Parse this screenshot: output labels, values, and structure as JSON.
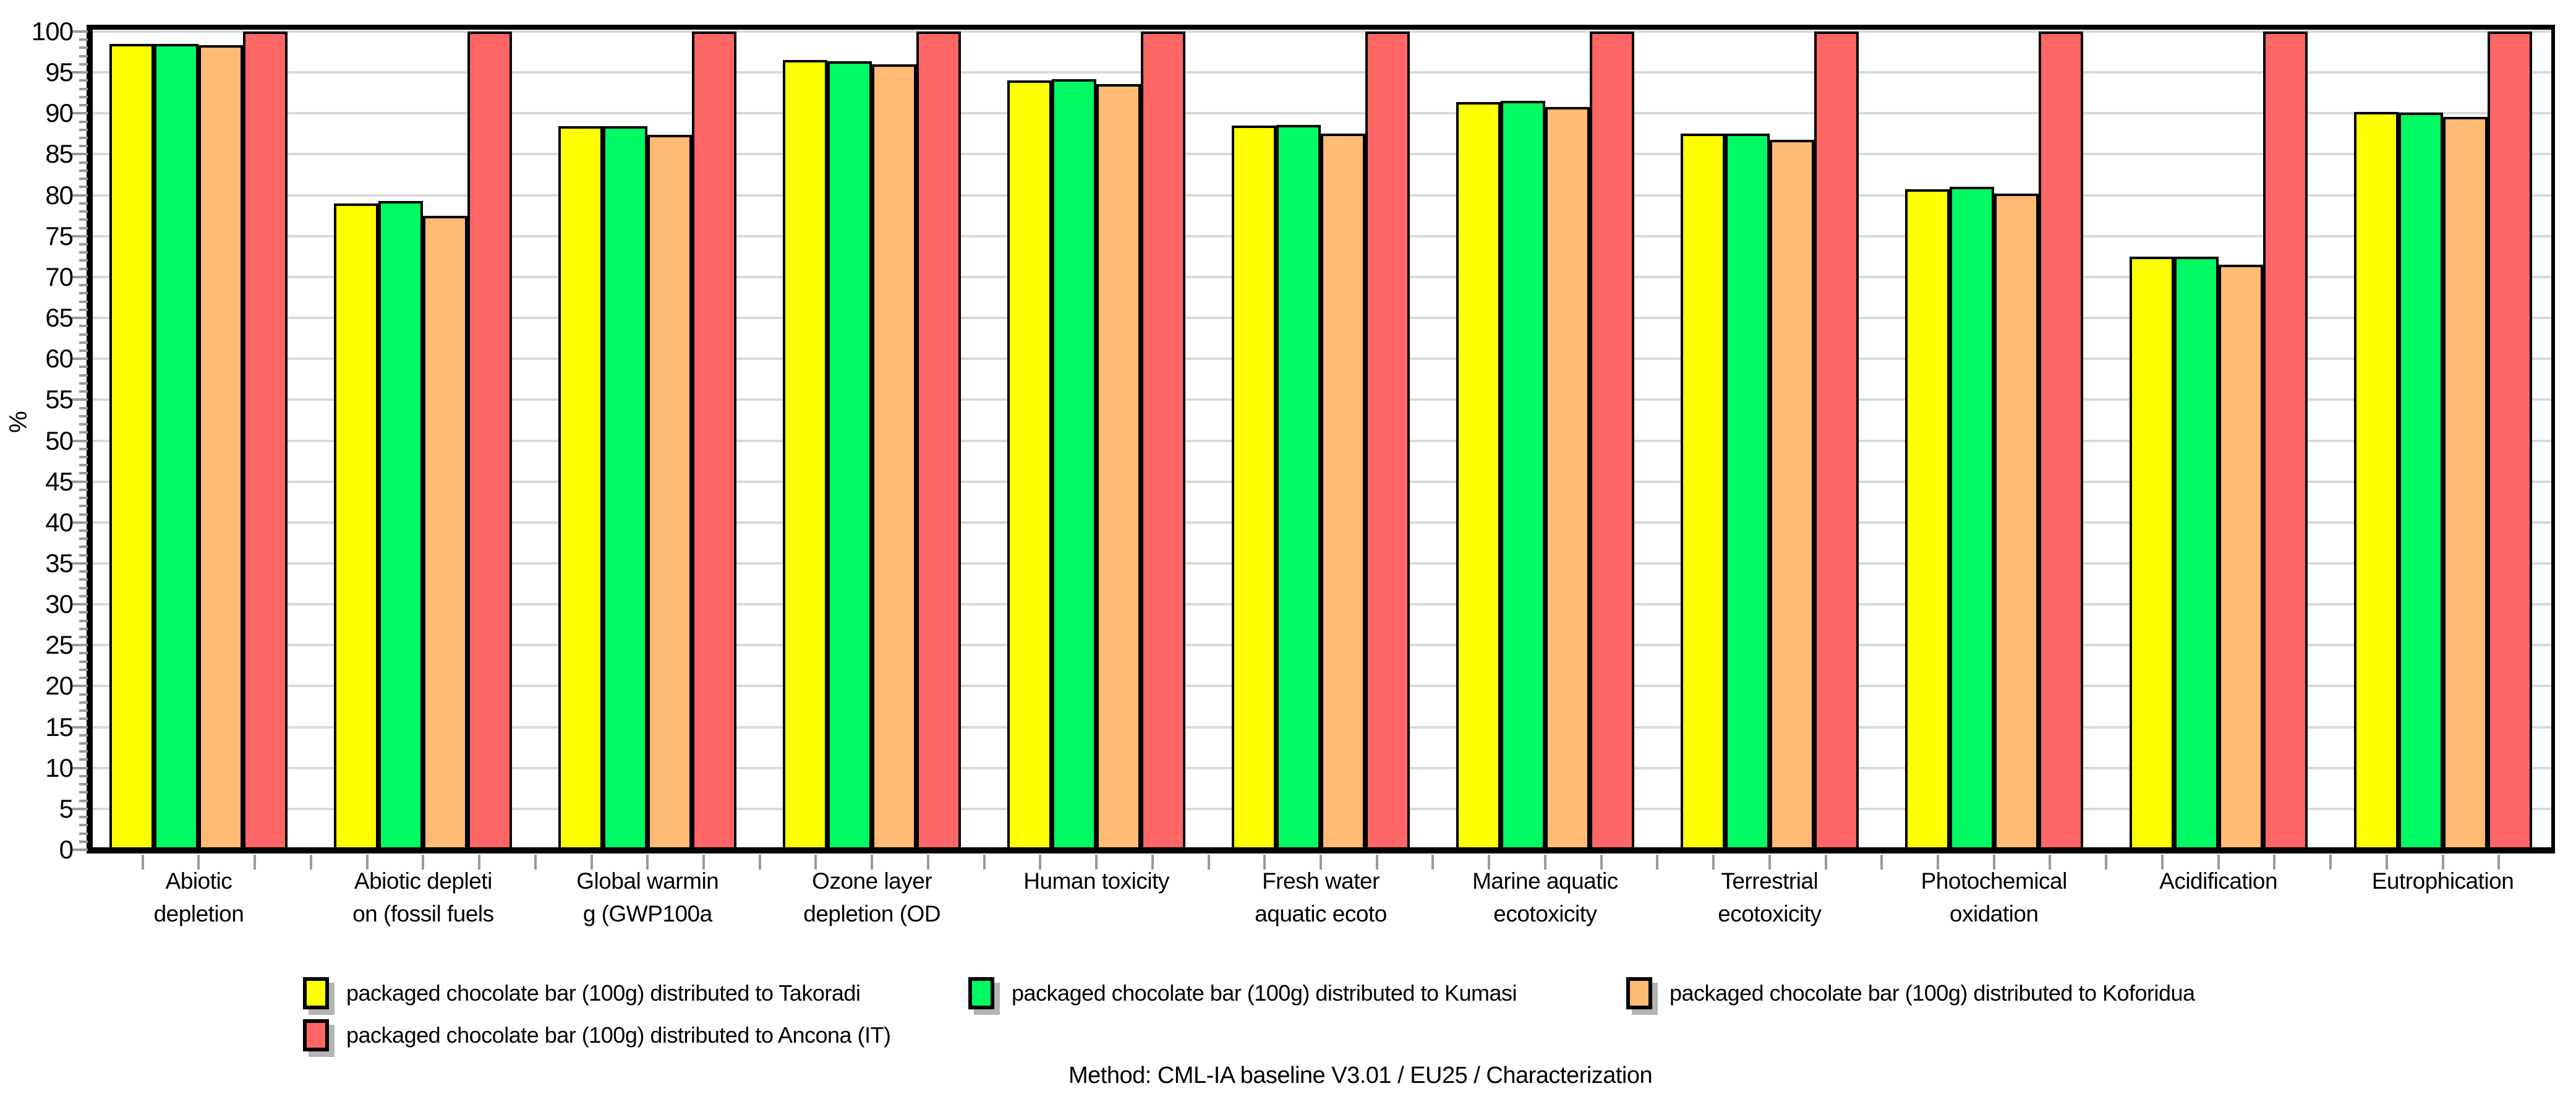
{
  "chart_data": {
    "type": "bar",
    "title": "",
    "ylabel": "%",
    "ylim": [
      0,
      100
    ],
    "ytick_step": 5,
    "grid": true,
    "legend_position": "bottom",
    "categories": [
      "Abiotic depletion",
      "Abiotic depletion (fossil fuels",
      "Global warming (GWP100a",
      "Ozone layer depletion (OD",
      "Human toxicity",
      "Fresh water aquatic ecoto",
      "Marine aquatic ecotoxicity",
      "Terrestrial ecotoxicity",
      "Photochemical oxidation",
      "Acidification",
      "Eutrophication"
    ],
    "category_display_lines": [
      [
        "Abiotic",
        "depletion"
      ],
      [
        "Abiotic depleti",
        "on (fossil fuels"
      ],
      [
        "Global warmin",
        "g (GWP100a"
      ],
      [
        "Ozone layer",
        "depletion (OD"
      ],
      [
        "Human toxicity"
      ],
      [
        "Fresh water",
        "aquatic ecoto"
      ],
      [
        "Marine aquatic",
        "ecotoxicity"
      ],
      [
        "Terrestrial",
        "ecotoxicity"
      ],
      [
        "Photochemical",
        "oxidation"
      ],
      [
        "Acidification"
      ],
      [
        "Eutrophication"
      ]
    ],
    "series": [
      {
        "name": "packaged chocolate bar (100g) distributed to Takoradi",
        "color": "#FFFF00",
        "values": [
          98.5,
          79.0,
          88.4,
          96.5,
          94.0,
          88.5,
          91.4,
          87.5,
          80.7,
          72.5,
          90.2
        ]
      },
      {
        "name": "packaged chocolate bar (100g) distributed to Kumasi",
        "color": "#00FA64",
        "values": [
          98.5,
          79.3,
          88.4,
          96.4,
          94.2,
          88.6,
          91.5,
          87.5,
          81.0,
          72.5,
          90.1
        ]
      },
      {
        "name": "packaged chocolate bar (100g) distributed to Koforidua",
        "color": "#FFBB73",
        "values": [
          98.3,
          77.5,
          87.4,
          96.0,
          93.6,
          87.5,
          90.8,
          86.8,
          80.2,
          71.5,
          89.6
        ]
      },
      {
        "name": "packaged chocolate bar (100g) distributed to Ancona (IT)",
        "color": "#FF6666",
        "values": [
          100,
          100,
          100,
          100,
          100,
          100,
          100,
          100,
          100,
          100,
          100
        ]
      }
    ],
    "footer": "Method: CML-IA baseline V3.01 / EU25 / Characterization"
  }
}
